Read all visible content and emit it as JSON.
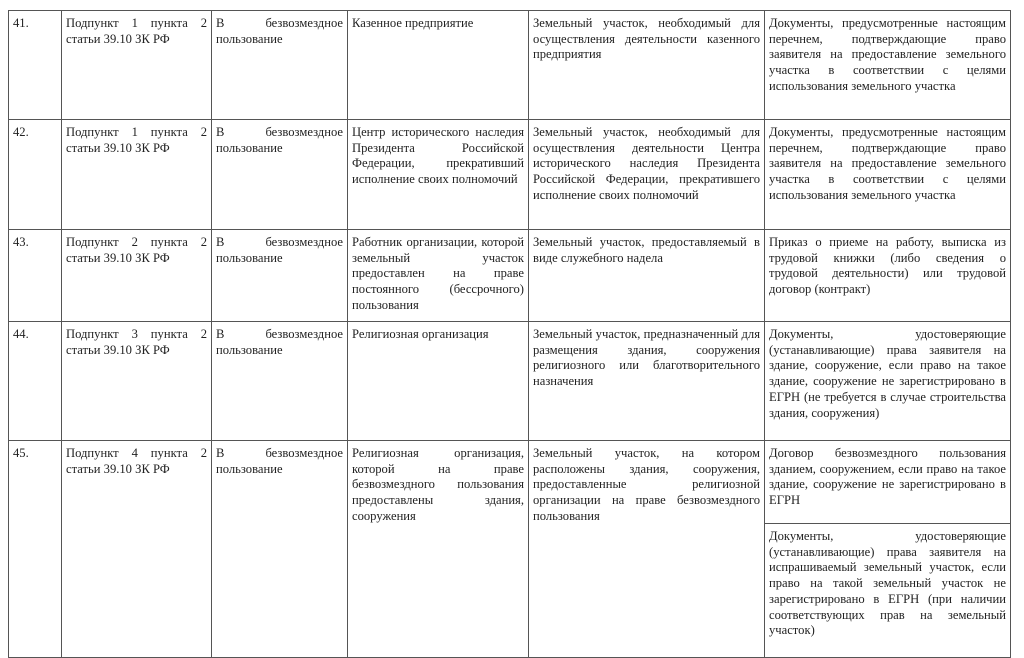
{
  "rows": [
    {
      "num": "41.",
      "basis": "Подпункт 1 пункта 2 статьи 39.10 ЗК РФ",
      "type": "В безвозмездное пользование",
      "applicant": "Казенное предприятие",
      "plot": "Земельный участок, необходимый для осуществления деятельности казенного предприятия",
      "docs": [
        "Документы, предусмотренные настоящим перечнем, подтверждающие право заявителя на предоставление земельного участка в соответствии с целями использования земельного участка"
      ]
    },
    {
      "num": "42.",
      "basis": "Подпункт 1 пункта 2 статьи 39.10 ЗК РФ",
      "type": "В безвозмездное пользование",
      "applicant": "Центр исторического наследия Президента Российской Федерации, прекративший исполнение своих полномочий",
      "plot": "Земельный участок, необходимый для осуществления деятельности Центра исторического наследия Президента Российской Федерации, прекратившего исполнение своих полномочий",
      "docs": [
        "Документы, предусмотренные настоящим перечнем, подтверждающие право заявителя на предоставление земельного участка в соответствии с целями использования земельного участка"
      ]
    },
    {
      "num": "43.",
      "basis": "Подпункт 2 пункта 2 статьи 39.10 ЗК РФ",
      "type": "В безвозмездное пользование",
      "applicant": "Работник организации, которой земельный участок предоставлен на праве постоянного (бессрочного) пользования",
      "plot": "Земельный участок, предоставляемый в виде служебного надела",
      "docs": [
        "Приказ о приеме на работу, выписка из трудовой книжки (либо сведения о трудовой деятельности) или трудовой договор (контракт)"
      ]
    },
    {
      "num": "44.",
      "basis": "Подпункт 3 пункта 2 статьи 39.10 ЗК РФ",
      "type": "В безвозмездное пользование",
      "applicant": "Религиозная организация",
      "plot": "Земельный участок, предназначенный для размещения здания, сооружения религиозного или благотворительного назначения",
      "docs": [
        "Документы, удостоверяющие (устанавливающие) права заявителя на здание, сооружение, если право на такое здание, сооружение не зарегистрировано в ЕГРН (не требуется в случае строительства здания, сооружения)"
      ]
    },
    {
      "num": "45.",
      "basis": "Подпункт 4 пункта 2 статьи 39.10 ЗК РФ",
      "type": "В безвозмездное пользование",
      "applicant": "Религиозная организация, которой на праве безвозмездного пользования предоставлены здания, сооружения",
      "plot": "Земельный участок, на котором расположены здания, сооружения, предоставленные религиозной организации на праве безвозмездного пользования",
      "docs": [
        "Договор безвозмездного пользования зданием, сооружением, если право на такое здание, сооружение не зарегистрировано в ЕГРН",
        "Документы, удостоверяющие (устанавливающие) права заявителя на испрашиваемый земельный участок, если право на такой земельный участок не зарегистрировано в ЕГРН (при наличии соответствующих прав на земельный участок)"
      ]
    }
  ]
}
